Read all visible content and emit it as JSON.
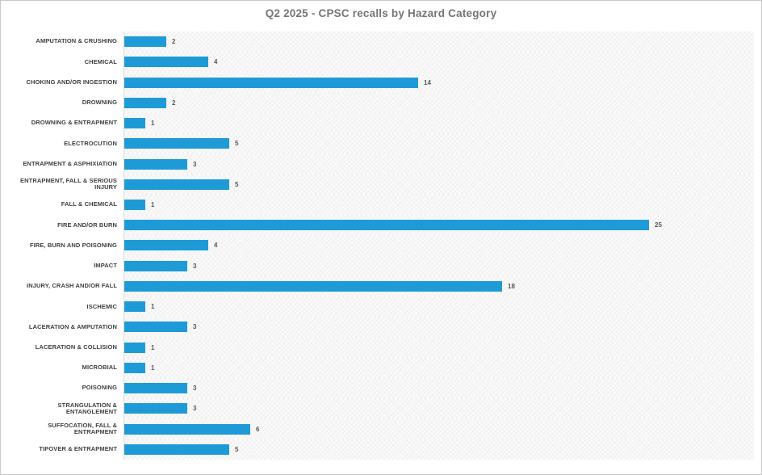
{
  "colors": {
    "bar": "#1e9bd7",
    "title_text": "#757575",
    "category_text": "#404040",
    "value_text": "#595959",
    "frame_border": "#c9c9c9",
    "plot_background": "#fafafa"
  },
  "chart_data": {
    "type": "bar",
    "orientation": "horizontal",
    "title": "Q2 2025 - CPSC recalls by Hazard Category",
    "xlabel": "",
    "ylabel": "",
    "xlim": [
      0,
      30
    ],
    "grid": false,
    "legend": "none",
    "data_labels": true,
    "categories": [
      "AMPUTATION & CRUSHING",
      "CHEMICAL",
      "CHOKING AND/OR INGESTION",
      "DROWNING",
      "DROWNING & ENTRAPMENT",
      "ELECTROCUTION",
      "ENTRAPMENT & ASPHIXIATION",
      "ENTRAPMENT, FALL & SERIOUS INJURY",
      "FALL & CHEMICAL",
      "FIRE AND/OR BURN",
      "FIRE, BURN AND POISONING",
      "IMPACT",
      "INJURY, CRASH AND/OR FALL",
      "ISCHEMIC",
      "LACERATION & AMPUTATION",
      "LACERATION & COLLISION",
      "MICROBIAL",
      "POISONING",
      "STRANGULATION & ENTANGLEMENT",
      "SUFFOCATION, FALL & ENTRAPMENT",
      "TIPOVER & ENTRAPMENT"
    ],
    "values": [
      2,
      4,
      14,
      2,
      1,
      5,
      3,
      5,
      1,
      25,
      4,
      3,
      18,
      1,
      3,
      1,
      1,
      3,
      3,
      6,
      5
    ]
  }
}
